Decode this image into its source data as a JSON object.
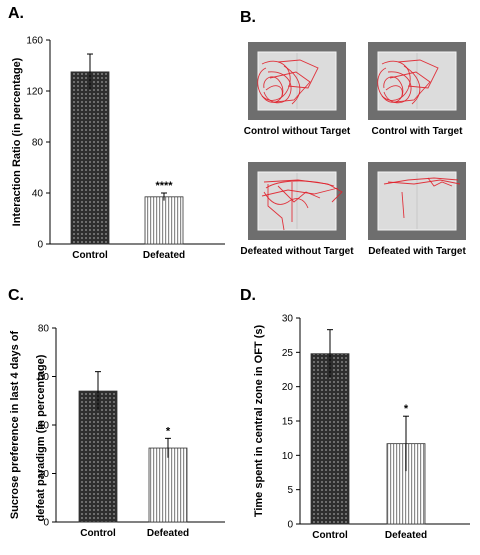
{
  "figure": {
    "panel_a_letter": "A.",
    "panel_b_letter": "B.",
    "panel_c_letter": "C.",
    "panel_d_letter": "D."
  },
  "panel_b": {
    "images": [
      {
        "caption": "Control without Target",
        "track": "dense-left"
      },
      {
        "caption": "Control with Target",
        "track": "dense-left"
      },
      {
        "caption": "Defeated without Target",
        "track": "spread"
      },
      {
        "caption": "Defeated with Target",
        "track": "top-edge"
      }
    ],
    "colors": {
      "arena_outer": "#6e6e6e",
      "arena_floor": "#dcdcdc",
      "track": "#e0202a"
    }
  },
  "chart_data": [
    {
      "id": "A",
      "type": "bar",
      "title": "",
      "ylabel": "Interaction Ratio (in percentage)",
      "xlabel": "",
      "categories": [
        "Control",
        "Defeated"
      ],
      "values": [
        135,
        37
      ],
      "errors": [
        14,
        3
      ],
      "significance": [
        "",
        "****"
      ],
      "ylim": [
        0,
        160
      ],
      "yticks": [
        0,
        40,
        80,
        120,
        160
      ],
      "grid": false
    },
    {
      "id": "C",
      "type": "bar",
      "title": "",
      "ylabel": "Sucrose preference in last 4 days of defeat paradigm (in percentage)",
      "ylabel_lines": [
        "Sucrose preference in last 4 days of",
        "defeat paradigm (in percentage)"
      ],
      "xlabel": "",
      "categories": [
        "Control",
        "Defeated"
      ],
      "values": [
        54,
        30.5
      ],
      "errors": [
        8,
        4
      ],
      "significance": [
        "",
        "*"
      ],
      "ylim": [
        0,
        80
      ],
      "yticks": [
        0,
        20,
        40,
        60,
        80
      ],
      "grid": false
    },
    {
      "id": "D",
      "type": "bar",
      "title": "",
      "ylabel": "Time spent in central zone in OFT (s)",
      "xlabel": "",
      "categories": [
        "Control",
        "Defeated"
      ],
      "values": [
        24.8,
        11.7
      ],
      "errors": [
        3.5,
        4
      ],
      "significance": [
        "",
        "*"
      ],
      "ylim": [
        0,
        30
      ],
      "yticks": [
        0,
        5,
        10,
        15,
        20,
        25,
        30
      ],
      "grid": false
    }
  ]
}
